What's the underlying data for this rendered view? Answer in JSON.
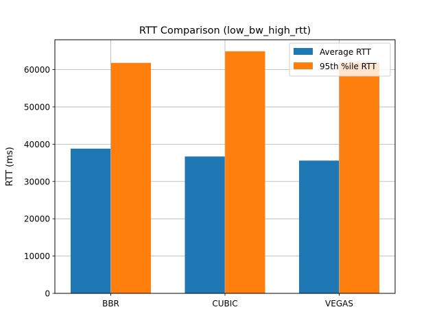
{
  "chart_data": {
    "type": "bar",
    "title": "RTT Comparison (low_bw_high_rtt)",
    "xlabel": "",
    "ylabel": "RTT (ms)",
    "categories": [
      "BBR",
      "CUBIC",
      "VEGAS"
    ],
    "series": [
      {
        "name": "Average RTT",
        "color": "#1f77b4",
        "values": [
          38800,
          36700,
          35600
        ]
      },
      {
        "name": "95th %ile RTT",
        "color": "#ff7f0e",
        "values": [
          61800,
          64900,
          61900
        ]
      }
    ],
    "ylim": [
      0,
      68000
    ],
    "yticks": [
      0,
      10000,
      20000,
      30000,
      40000,
      50000,
      60000
    ],
    "grid": true,
    "legend": "top-right"
  }
}
